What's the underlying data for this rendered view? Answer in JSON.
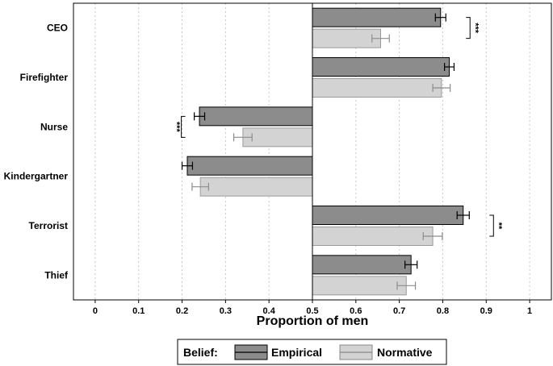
{
  "chart_data": {
    "type": "bar",
    "orientation": "horizontal",
    "xlabel": "Proportion of men",
    "xlim": [
      -0.05,
      1.05
    ],
    "x_ticks": [
      "0",
      "0.1",
      "0.2",
      "0.3",
      "0.4",
      "0.5",
      "0.6",
      "0.7",
      "0.8",
      "0.9",
      "1"
    ],
    "baseline": 0.5,
    "grid": "vertical dotted",
    "categories": [
      "CEO",
      "Firefighter",
      "Nurse",
      "Kindergartner",
      "Terrorist",
      "Thief"
    ],
    "series": [
      {
        "name": "Empirical",
        "color": "#8c8c8c",
        "values": [
          0.795,
          0.815,
          0.24,
          0.212,
          0.847,
          0.727
        ],
        "errors": [
          0.012,
          0.011,
          0.012,
          0.012,
          0.014,
          0.014
        ]
      },
      {
        "name": "Normative",
        "color": "#d3d3d3",
        "values": [
          0.657,
          0.797,
          0.34,
          0.242,
          0.777,
          0.716
        ],
        "errors": [
          0.02,
          0.02,
          0.021,
          0.019,
          0.022,
          0.021
        ]
      }
    ],
    "significance": [
      {
        "category": "CEO",
        "label": "***"
      },
      {
        "category": "Nurse",
        "label": "***"
      },
      {
        "category": "Terrorist",
        "label": "**"
      }
    ],
    "legend": {
      "title": "Belief:",
      "position": "bottom"
    }
  },
  "colors": {
    "empirical_fill": "#8c8c8c",
    "normative_fill": "#d3d3d3",
    "empirical_error": "#000000",
    "normative_error": "#8c8c8c",
    "grid": "#c8c8c8"
  }
}
